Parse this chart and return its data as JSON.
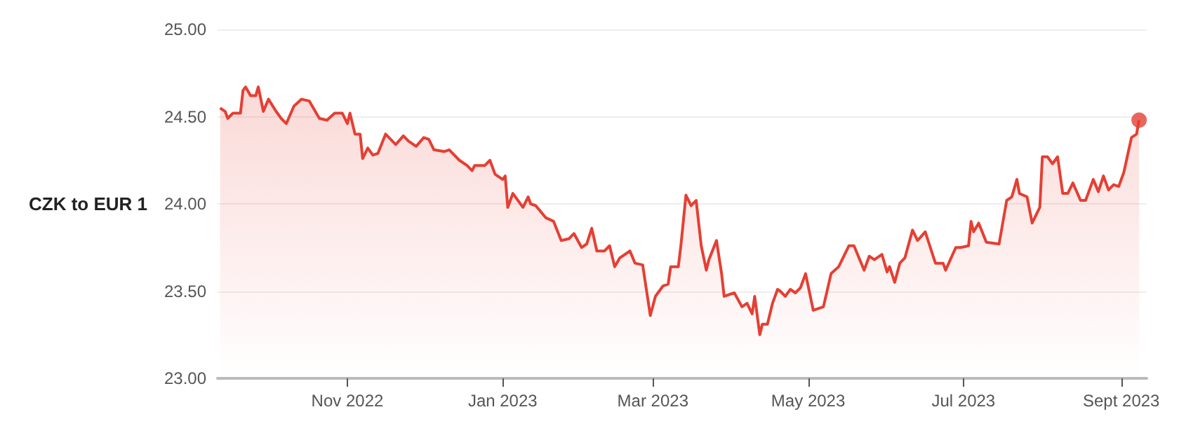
{
  "chart_data": {
    "type": "area",
    "ylabel": "CZK to EUR 1",
    "x": [
      "2022-09-12",
      "2022-09-14",
      "2022-09-15",
      "2022-09-17",
      "2022-09-20",
      "2022-09-21",
      "2022-09-22",
      "2022-09-24",
      "2022-09-26",
      "2022-09-27",
      "2022-09-29",
      "2022-10-01",
      "2022-10-04",
      "2022-10-06",
      "2022-10-08",
      "2022-10-11",
      "2022-10-14",
      "2022-10-17",
      "2022-10-21",
      "2022-10-24",
      "2022-10-27",
      "2022-10-30",
      "2022-11-01",
      "2022-11-02",
      "2022-11-04",
      "2022-11-06",
      "2022-11-07",
      "2022-11-09",
      "2022-11-11",
      "2022-11-13",
      "2022-11-16",
      "2022-11-18",
      "2022-11-20",
      "2022-11-23",
      "2022-11-25",
      "2022-11-28",
      "2022-12-01",
      "2022-12-03",
      "2022-12-05",
      "2022-12-09",
      "2022-12-11",
      "2022-12-15",
      "2022-12-18",
      "2022-12-20",
      "2022-12-21",
      "2022-12-25",
      "2022-12-27",
      "2022-12-29",
      "2023-01-01",
      "2023-01-02",
      "2023-01-03",
      "2023-01-05",
      "2023-01-09",
      "2023-01-11",
      "2023-01-12",
      "2023-01-14",
      "2023-01-18",
      "2023-01-21",
      "2023-01-24",
      "2023-01-27",
      "2023-01-29",
      "2023-02-01",
      "2023-02-03",
      "2023-02-05",
      "2023-02-07",
      "2023-02-10",
      "2023-02-12",
      "2023-02-14",
      "2023-02-16",
      "2023-02-20",
      "2023-02-22",
      "2023-02-25",
      "2023-02-28",
      "2023-03-02",
      "2023-03-05",
      "2023-03-07",
      "2023-03-08",
      "2023-03-11",
      "2023-03-12",
      "2023-03-14",
      "2023-03-16",
      "2023-03-18",
      "2023-03-20",
      "2023-03-22",
      "2023-03-23",
      "2023-03-26",
      "2023-03-28",
      "2023-03-29",
      "2023-04-02",
      "2023-04-05",
      "2023-04-07",
      "2023-04-09",
      "2023-04-10",
      "2023-04-12",
      "2023-04-13",
      "2023-04-15",
      "2023-04-17",
      "2023-04-19",
      "2023-04-20",
      "2023-04-22",
      "2023-04-24",
      "2023-04-26",
      "2023-04-28",
      "2023-04-30",
      "2023-05-03",
      "2023-05-07",
      "2023-05-10",
      "2023-05-13",
      "2023-05-17",
      "2023-05-19",
      "2023-05-21",
      "2023-05-23",
      "2023-05-25",
      "2023-05-27",
      "2023-05-30",
      "2023-06-01",
      "2023-06-02",
      "2023-06-04",
      "2023-06-06",
      "2023-06-08",
      "2023-06-11",
      "2023-06-13",
      "2023-06-16",
      "2023-06-18",
      "2023-06-20",
      "2023-06-23",
      "2023-06-24",
      "2023-06-28",
      "2023-06-30",
      "2023-07-03",
      "2023-07-04",
      "2023-07-05",
      "2023-07-07",
      "2023-07-10",
      "2023-07-15",
      "2023-07-18",
      "2023-07-20",
      "2023-07-22",
      "2023-07-23",
      "2023-07-26",
      "2023-07-28",
      "2023-07-31",
      "2023-08-01",
      "2023-08-03",
      "2023-08-05",
      "2023-08-07",
      "2023-08-09",
      "2023-08-11",
      "2023-08-13",
      "2023-08-16",
      "2023-08-18",
      "2023-08-21",
      "2023-08-23",
      "2023-08-25",
      "2023-08-27",
      "2023-08-29",
      "2023-08-31",
      "2023-09-02",
      "2023-09-05",
      "2023-09-07",
      "2023-09-08"
    ],
    "series": [
      {
        "color": "#e53f33",
        "values": [
          24.55,
          24.53,
          24.49,
          24.52,
          24.52,
          24.65,
          24.67,
          24.62,
          24.62,
          24.67,
          24.53,
          24.6,
          24.53,
          24.49,
          24.46,
          24.56,
          24.6,
          24.59,
          24.49,
          24.48,
          24.52,
          24.52,
          24.46,
          24.52,
          24.4,
          24.4,
          24.26,
          24.32,
          24.28,
          24.29,
          24.4,
          24.37,
          24.34,
          24.39,
          24.36,
          24.33,
          24.38,
          24.37,
          24.31,
          24.3,
          24.31,
          24.25,
          24.22,
          24.19,
          24.22,
          24.22,
          24.25,
          24.17,
          24.14,
          24.16,
          23.98,
          24.06,
          23.98,
          24.04,
          24.0,
          23.99,
          23.92,
          23.9,
          23.79,
          23.8,
          23.83,
          23.75,
          23.77,
          23.86,
          23.73,
          23.73,
          23.76,
          23.64,
          23.69,
          23.73,
          23.66,
          23.65,
          23.36,
          23.47,
          23.53,
          23.54,
          23.64,
          23.64,
          23.76,
          24.05,
          23.99,
          24.02,
          23.76,
          23.62,
          23.68,
          23.79,
          23.6,
          23.47,
          23.49,
          23.41,
          23.43,
          23.37,
          23.47,
          23.25,
          23.31,
          23.31,
          23.43,
          23.51,
          23.5,
          23.47,
          23.51,
          23.49,
          23.52,
          23.6,
          23.39,
          23.41,
          23.6,
          23.64,
          23.76,
          23.76,
          23.69,
          23.62,
          23.7,
          23.68,
          23.71,
          23.61,
          23.64,
          23.55,
          23.66,
          23.69,
          23.85,
          23.79,
          23.84,
          23.75,
          23.66,
          23.66,
          23.62,
          23.75,
          23.75,
          23.76,
          23.9,
          23.84,
          23.89,
          23.78,
          23.77,
          24.02,
          24.04,
          24.14,
          24.06,
          24.04,
          23.89,
          23.98,
          24.27,
          24.27,
          24.23,
          24.27,
          24.06,
          24.06,
          24.12,
          24.02,
          24.02,
          24.14,
          24.07,
          24.16,
          24.08,
          24.11,
          24.1,
          24.18,
          24.38,
          24.4,
          24.48
        ]
      },
      {
        "type": "scatter",
        "color": "#e53f33",
        "x": [
          "2023-09-08"
        ],
        "values": [
          24.48
        ],
        "marker": "circle"
      }
    ],
    "xlim": [
      "2022-09-11",
      "2023-09-11"
    ],
    "xticks": [
      {
        "value": "2022-11-01",
        "label": "Nov 2022"
      },
      {
        "value": "2023-01-01",
        "label": "Jan 2023"
      },
      {
        "value": "2023-03-01",
        "label": "Mar 2023"
      },
      {
        "value": "2023-05-01",
        "label": "May 2023"
      },
      {
        "value": "2023-07-01",
        "label": "Jul 2023"
      },
      {
        "value": "2023-09-01",
        "label": "Sept 2023"
      }
    ],
    "ylim": [
      23,
      25
    ],
    "yticks": [
      {
        "value": 23,
        "label": "23.00"
      },
      {
        "value": 23.5,
        "label": "23.50"
      },
      {
        "value": 24,
        "label": "24.00"
      },
      {
        "value": 24.5,
        "label": "24.50"
      },
      {
        "value": 25,
        "label": "25.00"
      }
    ],
    "grid": "y"
  }
}
